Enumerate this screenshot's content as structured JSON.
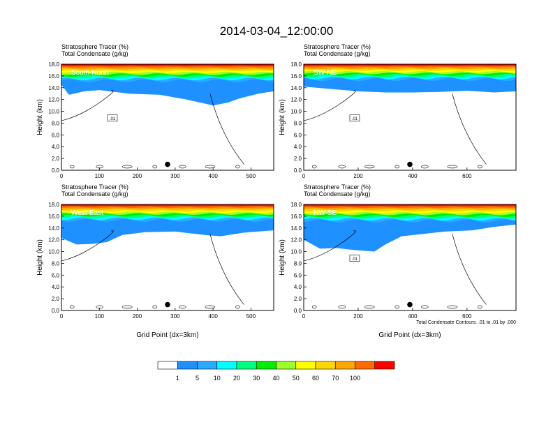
{
  "figure": {
    "title": "2014-03-04_12:00:00",
    "footnote": "Total Condensate Contours: .01 to .01 by .000",
    "colorbar": {
      "colors": [
        "#ffffff",
        "#1e90ff",
        "#2aaaff",
        "#00ffff",
        "#00ff7f",
        "#00ee00",
        "#9aff2a",
        "#ffff00",
        "#ffd700",
        "#ffa500",
        "#ff6a00",
        "#ff0000"
      ],
      "labels": [
        "1",
        "5",
        "10",
        "20",
        "30",
        "40",
        "50",
        "60",
        "70",
        "100"
      ]
    }
  },
  "chart_data": [
    {
      "type": "heatmap",
      "panel_label": "South-North",
      "title_lines": [
        "Stratosphere Tracer   (%)",
        "Total Condensate   (g/kg)"
      ],
      "ylabel": "Height (km)",
      "xlabel": "",
      "xlim": [
        0,
        560
      ],
      "ylim": [
        0,
        18
      ],
      "xticks": [
        "0",
        "100",
        "200",
        "300",
        "400",
        "500"
      ],
      "xtick_values": [
        0,
        100,
        200,
        300,
        400,
        500
      ],
      "yticks": [
        "0.0",
        "2.0",
        "4.0",
        "6.0",
        "8.0",
        "10.0",
        "12.0",
        "14.0",
        "16.0",
        "18.0"
      ],
      "contour_label": ".01",
      "marker_x": 280,
      "tracer_base_km": 15.2,
      "blue_layer": [
        [
          0,
          14.5
        ],
        [
          20,
          12.8
        ],
        [
          60,
          13.4
        ],
        [
          100,
          13.6
        ],
        [
          140,
          13.3
        ],
        [
          180,
          13.0
        ],
        [
          260,
          12.8
        ],
        [
          330,
          12.0
        ],
        [
          400,
          11.0
        ],
        [
          440,
          11.5
        ],
        [
          470,
          12.2
        ],
        [
          520,
          13.0
        ],
        [
          560,
          13.4
        ]
      ]
    },
    {
      "type": "heatmap",
      "panel_label": "SW-NE",
      "title_lines": [
        "Stratosphere Tracer   (%)",
        "Total Condensate   (g/kg)"
      ],
      "ylabel": "Height (km)",
      "xlabel": "",
      "xlim": [
        0,
        780
      ],
      "ylim": [
        0,
        18
      ],
      "xticks": [
        "0",
        "200",
        "400",
        "600"
      ],
      "xtick_values": [
        0,
        200,
        400,
        600
      ],
      "yticks": [
        "0.0",
        "2.0",
        "4.0",
        "6.0",
        "8.0",
        "10.0",
        "12.0",
        "14.0",
        "16.0",
        "18.0"
      ],
      "contour_label": ".01",
      "marker_x": 390,
      "tracer_base_km": 15.4,
      "blue_layer": [
        [
          0,
          14.2
        ],
        [
          100,
          13.8
        ],
        [
          200,
          13.4
        ],
        [
          300,
          13.2
        ],
        [
          400,
          13.2
        ],
        [
          500,
          13.3
        ],
        [
          600,
          13.5
        ],
        [
          700,
          13.2
        ],
        [
          780,
          13.4
        ]
      ]
    },
    {
      "type": "heatmap",
      "panel_label": "West-East",
      "title_lines": [
        "Stratosphere Tracer   (%)",
        "Total Condensate   (g/kg)"
      ],
      "ylabel": "Height (km)",
      "xlabel": "Grid Point (dx=3km)",
      "xlim": [
        0,
        560
      ],
      "ylim": [
        0,
        18
      ],
      "xticks": [
        "0",
        "100",
        "200",
        "300",
        "400",
        "500"
      ],
      "xtick_values": [
        0,
        100,
        200,
        300,
        400,
        500
      ],
      "yticks": [
        "0.0",
        "2.0",
        "4.0",
        "6.0",
        "8.0",
        "10.0",
        "12.0",
        "14.0",
        "16.0",
        "18.0"
      ],
      "contour_label": "",
      "marker_x": 280,
      "tracer_base_km": 15.3,
      "blue_layer": [
        [
          0,
          12.3
        ],
        [
          40,
          11.2
        ],
        [
          80,
          11.3
        ],
        [
          120,
          11.6
        ],
        [
          160,
          12.8
        ],
        [
          220,
          13.3
        ],
        [
          300,
          13.4
        ],
        [
          380,
          12.8
        ],
        [
          420,
          12.6
        ],
        [
          480,
          13.2
        ],
        [
          560,
          13.6
        ]
      ]
    },
    {
      "type": "heatmap",
      "panel_label": "NW-SE",
      "title_lines": [
        "Stratosphere Tracer   (%)",
        "Total Condensate   (g/kg)"
      ],
      "ylabel": "Height (km)",
      "xlabel": "Grid Point (dx=3km)",
      "xlim": [
        0,
        780
      ],
      "ylim": [
        0,
        18
      ],
      "xticks": [
        "0",
        "200",
        "400",
        "600"
      ],
      "xtick_values": [
        0,
        200,
        400,
        600
      ],
      "yticks": [
        "0.0",
        "2.0",
        "4.0",
        "6.0",
        "8.0",
        "10.0",
        "12.0",
        "14.0",
        "16.0",
        "18.0"
      ],
      "contour_label": ".01",
      "marker_x": 390,
      "tracer_base_km": 15.2,
      "blue_layer": [
        [
          0,
          12.0
        ],
        [
          60,
          10.5
        ],
        [
          120,
          10.6
        ],
        [
          200,
          10.2
        ],
        [
          260,
          10.0
        ],
        [
          300,
          11.2
        ],
        [
          360,
          12.6
        ],
        [
          440,
          13.0
        ],
        [
          520,
          13.4
        ],
        [
          620,
          13.6
        ],
        [
          700,
          14.2
        ],
        [
          780,
          14.6
        ]
      ]
    }
  ]
}
